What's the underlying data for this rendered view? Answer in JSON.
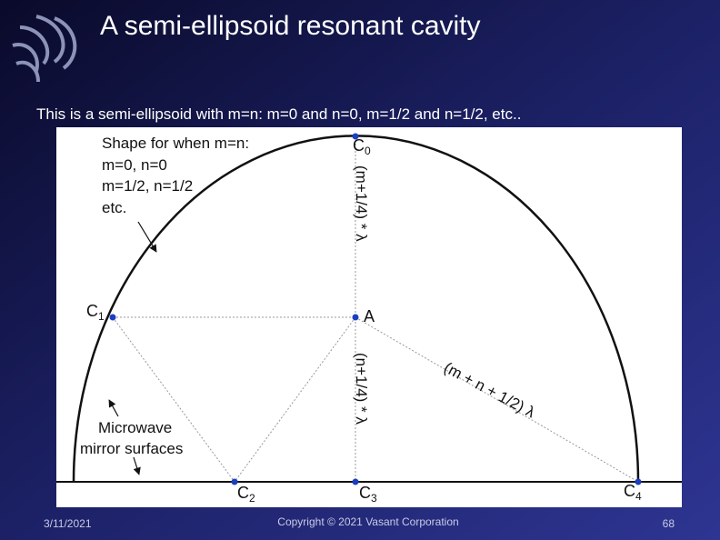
{
  "header": {
    "title": "A semi-ellipsoid resonant cavity",
    "subtitle": "This is a semi-ellipsoid with m=n:  m=0 and n=0, m=1/2 and n=1/2, etc.."
  },
  "figure": {
    "shape_note": [
      "Shape for when m=n:",
      "m=0, n=0",
      "m=1/2, n=1/2",
      "etc."
    ],
    "mirror_note": [
      "Microwave",
      "mirror surfaces"
    ],
    "points": [
      {
        "letter": "C",
        "sub": "0"
      },
      {
        "letter": "C",
        "sub": "1"
      },
      {
        "letter": "A"
      },
      {
        "letter": "C",
        "sub": "2"
      },
      {
        "letter": "C",
        "sub": "3"
      },
      {
        "letter": "C",
        "sub": "4"
      }
    ],
    "upper_length": "(m+1/4) * λ",
    "lower_length": "(n+1/4) * λ",
    "diagonal_length": "(m + n + 1/2) λ"
  },
  "footer": {
    "date": "3/11/2021",
    "copyright": "Copyright © 2021 Vasant Corporation",
    "page": "68"
  }
}
